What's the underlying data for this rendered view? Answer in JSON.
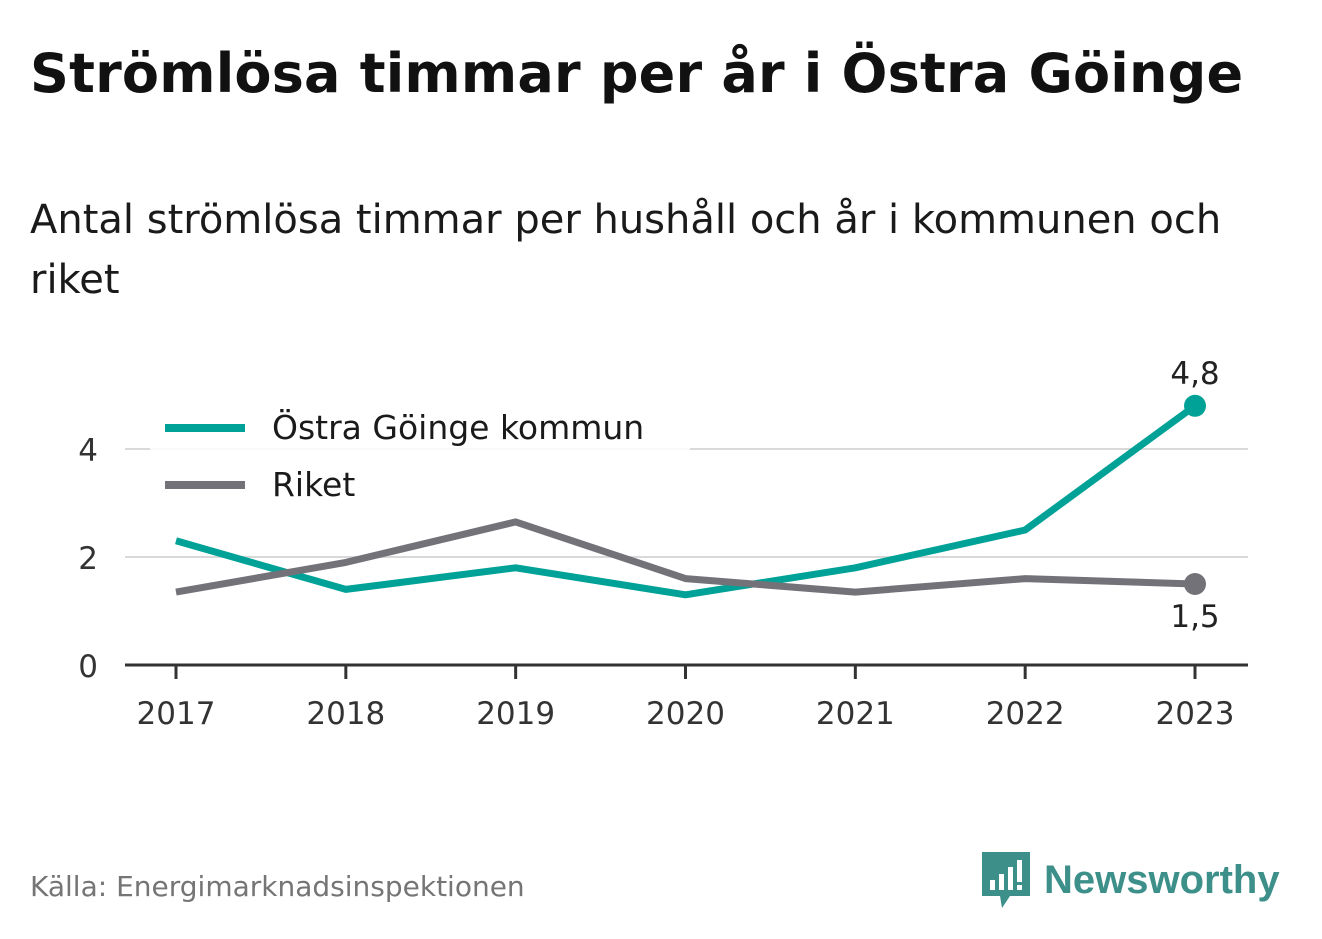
{
  "title": "Strömlösa timmar per år i Östra Göinge",
  "subtitle": "Antal strömlösa timmar per hushåll och år i kommunen och riket",
  "source": "Källa: Energimarknadsinspektionen",
  "brand": {
    "name": "Newsworthy",
    "icon": "newsworthy-logo-icon",
    "color": "#3d8f8a"
  },
  "chart_data": {
    "type": "line",
    "x": [
      "2017",
      "2018",
      "2019",
      "2020",
      "2021",
      "2022",
      "2023"
    ],
    "ylim": [
      0,
      5
    ],
    "yticks": [
      0,
      2,
      4
    ],
    "grid": true,
    "legend_position": "top-left",
    "series": [
      {
        "name": "Östra Göinge kommun",
        "color": "#00a297",
        "values": [
          2.3,
          1.4,
          1.8,
          1.3,
          1.8,
          2.5,
          4.8
        ],
        "end_label": "4,8"
      },
      {
        "name": "Riket",
        "color": "#747279",
        "values": [
          1.35,
          1.9,
          2.65,
          1.6,
          1.35,
          1.6,
          1.5
        ],
        "end_label": "1,5"
      }
    ]
  }
}
